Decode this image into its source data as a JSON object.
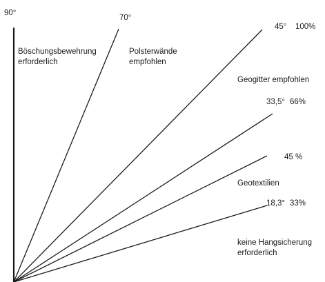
{
  "angle_labels": {
    "a90": "90°",
    "a70": "70°",
    "a45": "45°",
    "p100": "100%",
    "a33_5": "33,5°",
    "p66": "66%",
    "p45": "45 %",
    "a18_3": "18,3°",
    "p33": "33%"
  },
  "zones": {
    "boeschung_line1": "Böschungsbewehrung",
    "boeschung_line2": "erforderlich",
    "polster_line1": "Polsterwände",
    "polster_line2": "empfohlen",
    "geogitter": "Geogitter empfohlen",
    "geotextilien": "Geotextilien",
    "keine_line1": "keine Hangsicherung",
    "keine_line2": "erforderlich"
  },
  "lines": [
    {
      "id": "line-90",
      "angle": 90
    },
    {
      "id": "line-70",
      "angle": 70
    },
    {
      "id": "line-45",
      "angle": 45
    },
    {
      "id": "line-33-5",
      "angle": 33.5
    },
    {
      "id": "line-24",
      "angle": 24.2
    },
    {
      "id": "line-18-3",
      "angle": 18.3
    }
  ],
  "colors": {
    "line": "#1a1a1a",
    "text": "#1a1a1a",
    "background": "#ffffff"
  }
}
